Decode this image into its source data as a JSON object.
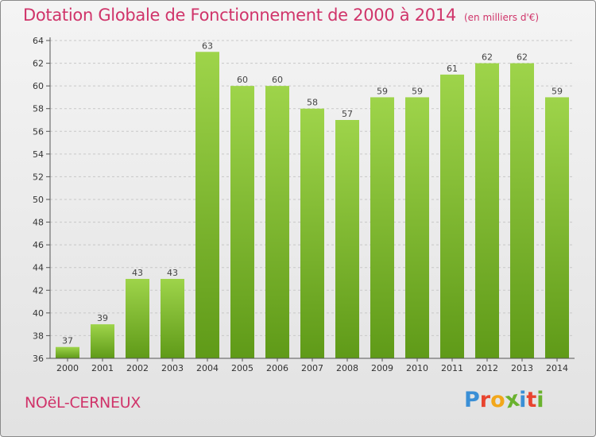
{
  "header": {
    "title": "Dotation Globale de Fonctionnement de 2000 à 2014",
    "unit": "(en milliers d'€)"
  },
  "footer": {
    "commune": "NOëL-CERNEUX",
    "logo_text": "Proxiti",
    "logo_colors": [
      "#3a8fd6",
      "#e8442f",
      "#f2a71b",
      "#6ab22e",
      "#3a8fd6",
      "#e8442f",
      "#6ab22e"
    ]
  },
  "colors": {
    "title": "#d0346a",
    "bar_light": "#9ed44a",
    "bar_dark": "#5f9a18",
    "grid": "#c8c8c8",
    "axis": "#555555"
  },
  "chart_data": {
    "type": "bar",
    "categories": [
      "2000",
      "2001",
      "2002",
      "2003",
      "2004",
      "2005",
      "2006",
      "2007",
      "2008",
      "2009",
      "2010",
      "2011",
      "2012",
      "2013",
      "2014"
    ],
    "values": [
      37,
      39,
      43,
      43,
      63,
      60,
      60,
      58,
      57,
      59,
      59,
      61,
      62,
      62,
      59
    ],
    "title": "Dotation Globale de Fonctionnement de 2000 à 2014",
    "subtitle": "(en milliers d'€)",
    "ylim": [
      36,
      64
    ],
    "yticks": [
      36,
      38,
      40,
      42,
      44,
      46,
      48,
      50,
      52,
      54,
      56,
      58,
      60,
      62,
      64
    ],
    "grid": true,
    "data_labels": true
  }
}
